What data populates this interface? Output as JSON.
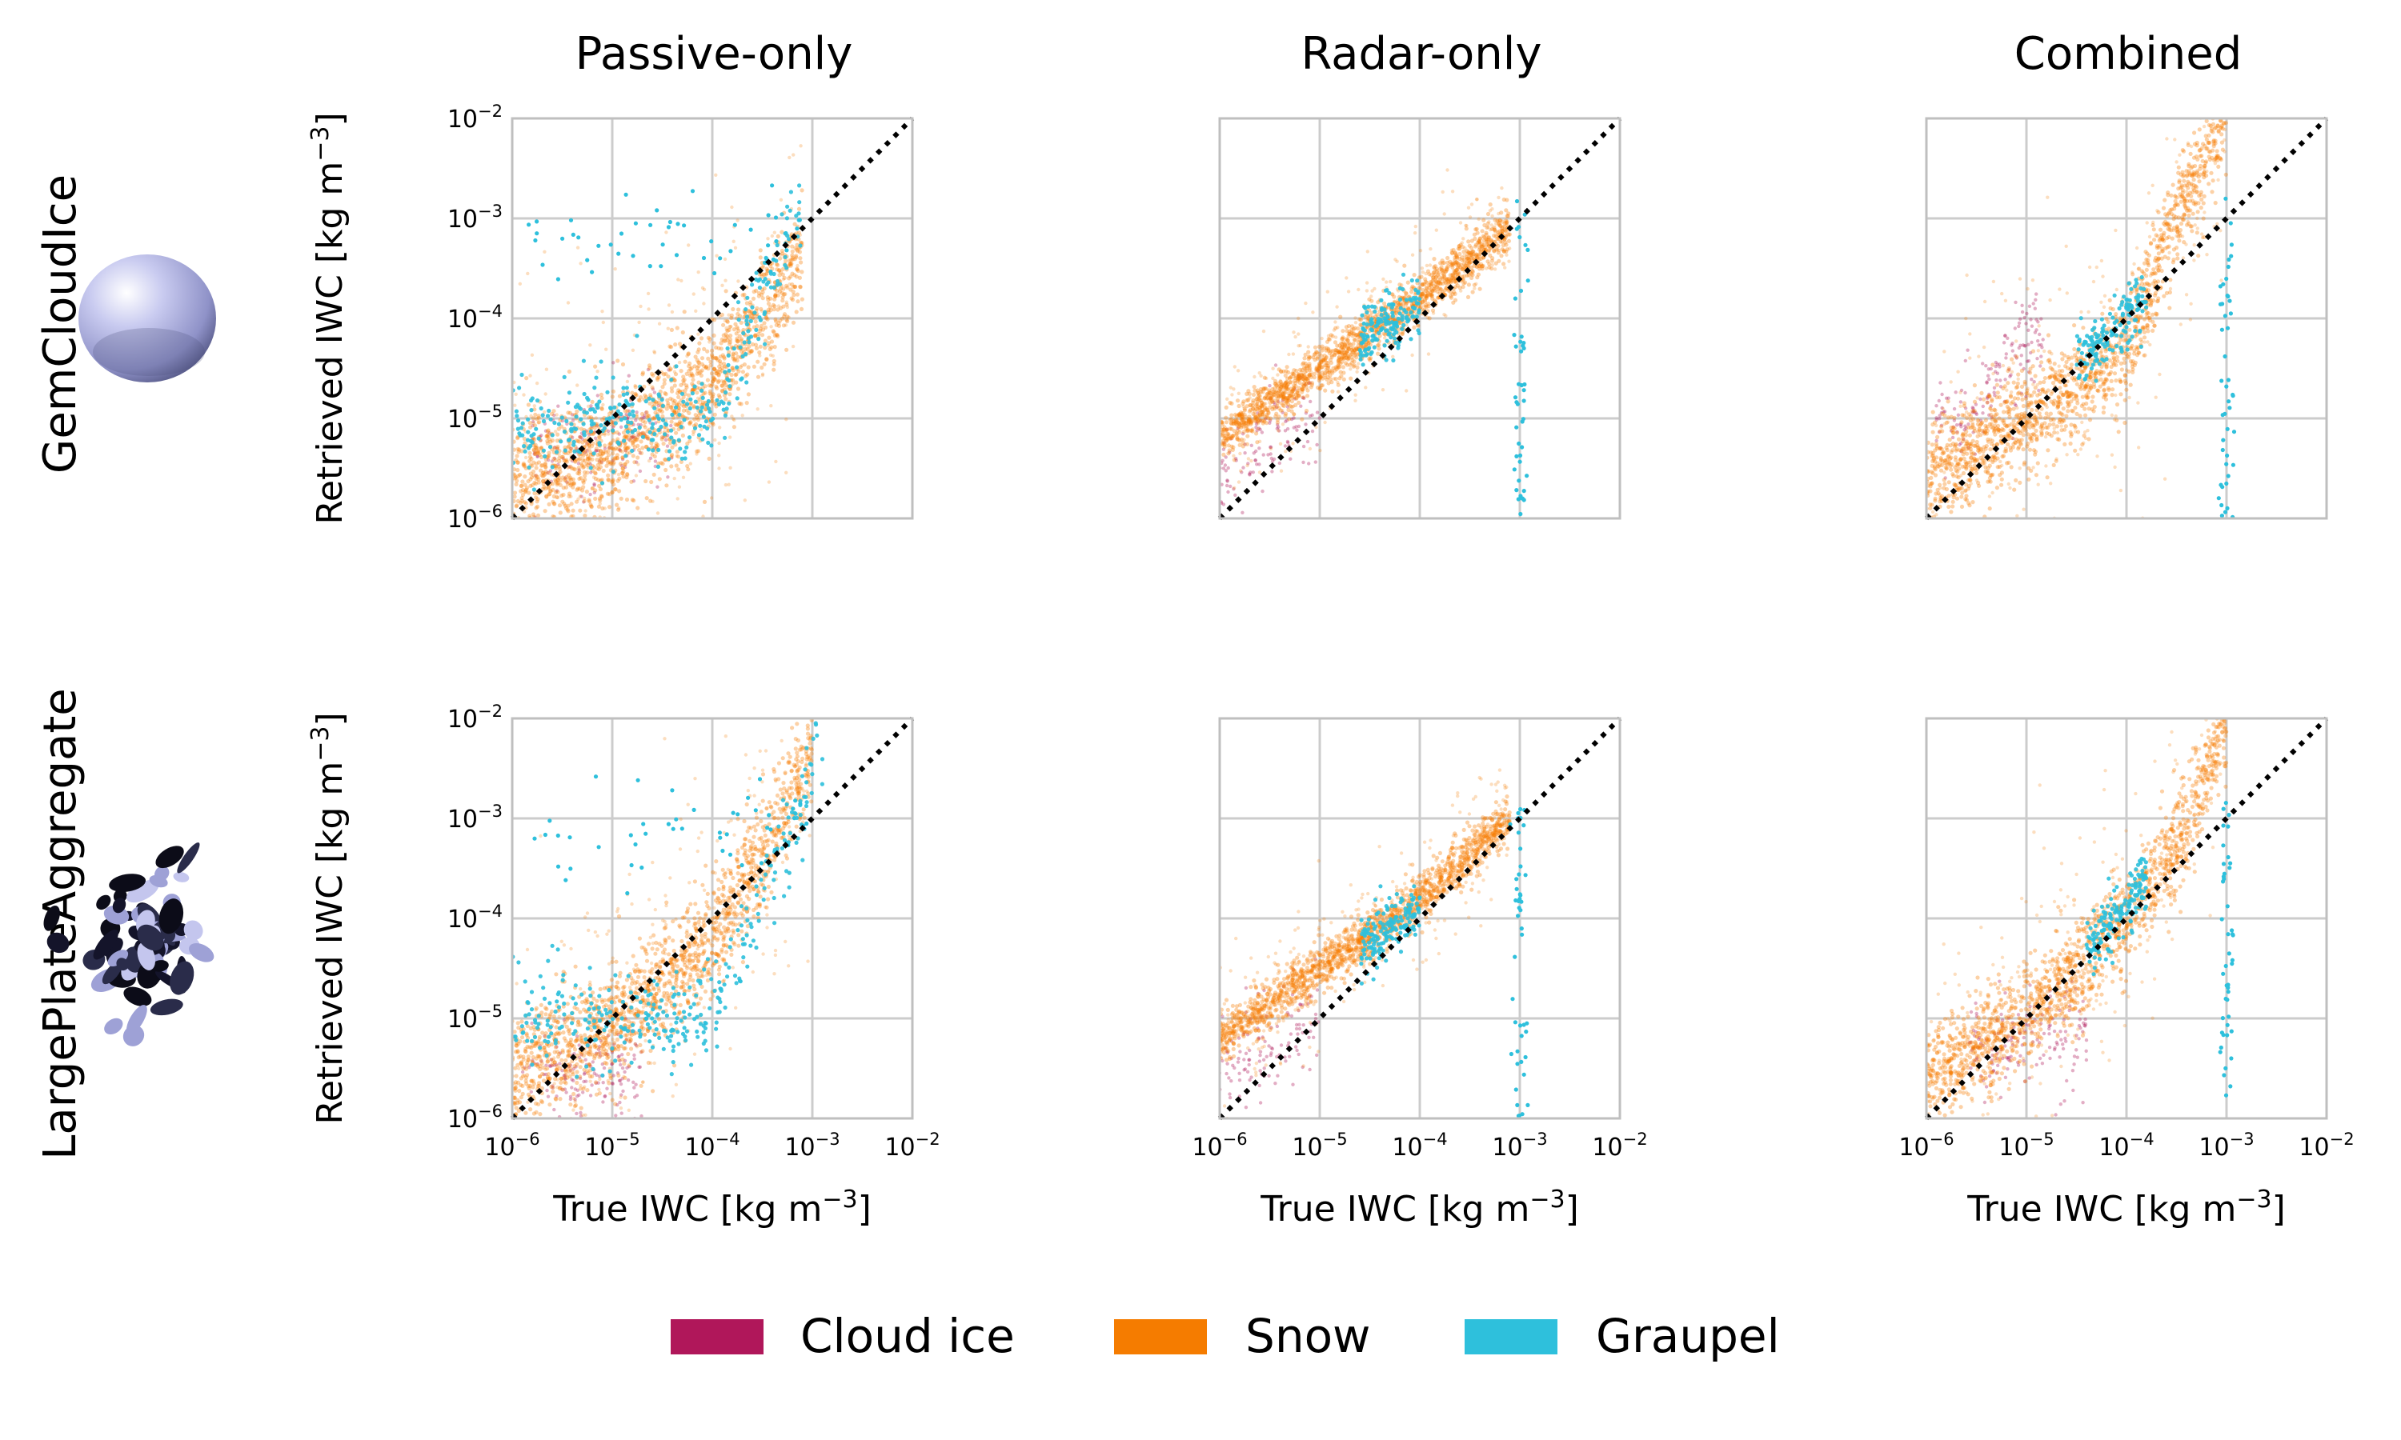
{
  "figure": {
    "columns": [
      "Passive-only",
      "Radar-only",
      "Combined"
    ],
    "rows": [
      "GemCloudIce",
      "LargePlateAggregate"
    ],
    "xlabel_text": "True IWC [kg m",
    "xlabel_exp": "−3",
    "xlabel_end": "]",
    "ylabel_text": "Retrieved IWC [kg  m",
    "ylabel_exp": "−3",
    "ylabel_end": "]",
    "colors": {
      "cloud_ice": "#b0175a",
      "snow": "#f57c00",
      "graupel": "#2ec0dc"
    },
    "legend": [
      {
        "name": "Cloud ice",
        "color": "#b0175a"
      },
      {
        "name": "Snow",
        "color": "#f57c00"
      },
      {
        "name": "Graupel",
        "color": "#2ec0dc"
      }
    ],
    "particle_icons": [
      "sphere-icon",
      "aggregate-icon"
    ]
  },
  "chart_data": {
    "type": "scatter",
    "xscale": "log",
    "yscale": "log",
    "xlim": [
      1e-06,
      0.01
    ],
    "ylim": [
      1e-06,
      0.01
    ],
    "grid": true,
    "legend_position": "bottom-center",
    "reference_line": "one-to-one dotted",
    "tick_base": "10",
    "tick_exponents": [
      "−6",
      "−5",
      "−4",
      "−3",
      "−2"
    ],
    "series": [
      "Cloud ice",
      "Snow",
      "Graupel"
    ],
    "panels": [
      {
        "row": "GemCloudIce",
        "column": "Passive-only",
        "snow_trend": [
          [
            -6,
            -5.6
          ],
          [
            -5,
            -5.3
          ],
          [
            -4.5,
            -5
          ],
          [
            -4,
            -4.6
          ],
          [
            -3.5,
            -4
          ],
          [
            -3.1,
            -3.3
          ]
        ],
        "graupel_trend": [
          [
            -6,
            -5.1
          ],
          [
            -5,
            -5
          ],
          [
            -4,
            -5
          ],
          [
            -3.1,
            -2.8
          ]
        ],
        "cloud_ice_trend": [
          [
            -5.5,
            -5.3
          ],
          [
            -4.6,
            -5.1
          ]
        ]
      },
      {
        "row": "GemCloudIce",
        "column": "Radar-only",
        "snow_trend": [
          [
            -6,
            -5.2
          ],
          [
            -5,
            -4.5
          ],
          [
            -4,
            -3.8
          ],
          [
            -3.1,
            -3.1
          ]
        ],
        "graupel_trend": [
          [
            -4.6,
            -4.2
          ],
          [
            -4,
            -3.9
          ]
        ],
        "cloud_ice_trend": [
          [
            -6,
            -5.6
          ],
          [
            -5.2,
            -5
          ]
        ]
      },
      {
        "row": "GemCloudIce",
        "column": "Combined",
        "snow_trend": [
          [
            -6,
            -5.6
          ],
          [
            -5,
            -5
          ],
          [
            -4,
            -4.3
          ],
          [
            -3.5,
            -3
          ],
          [
            -3,
            -2
          ]
        ],
        "graupel_trend": [
          [
            -4.5,
            -4.4
          ],
          [
            -3.8,
            -3.8
          ]
        ],
        "cloud_ice_trend": [
          [
            -5.6,
            -5
          ],
          [
            -5,
            -4.2
          ]
        ]
      },
      {
        "row": "LargePlateAggregate",
        "column": "Passive-only",
        "snow_trend": [
          [
            -6,
            -5.5
          ],
          [
            -5,
            -5.1
          ],
          [
            -4,
            -4.2
          ],
          [
            -3.5,
            -3.4
          ],
          [
            -3,
            -2.3
          ]
        ],
        "graupel_trend": [
          [
            -6,
            -5
          ],
          [
            -5,
            -5
          ],
          [
            -4,
            -5
          ],
          [
            -2.9,
            -2.3
          ]
        ],
        "cloud_ice_trend": [
          [
            -5.6,
            -5.6
          ],
          [
            -4.9,
            -5.5
          ]
        ]
      },
      {
        "row": "LargePlateAggregate",
        "column": "Radar-only",
        "snow_trend": [
          [
            -6,
            -5.2
          ],
          [
            -5,
            -4.5
          ],
          [
            -4,
            -3.8
          ],
          [
            -3.1,
            -3
          ]
        ],
        "graupel_trend": [
          [
            -4.6,
            -4.3
          ],
          [
            -4,
            -3.9
          ]
        ],
        "cloud_ice_trend": [
          [
            -6,
            -5.6
          ],
          [
            -5.2,
            -5.1
          ]
        ]
      },
      {
        "row": "LargePlateAggregate",
        "column": "Combined",
        "snow_trend": [
          [
            -6,
            -5.6
          ],
          [
            -5,
            -5
          ],
          [
            -4,
            -4
          ],
          [
            -3.5,
            -3.3
          ],
          [
            -3,
            -2
          ]
        ],
        "graupel_trend": [
          [
            -4.4,
            -4.3
          ],
          [
            -3.8,
            -3.6
          ]
        ],
        "cloud_ice_trend": [
          [
            -5.3,
            -5.3
          ],
          [
            -4.6,
            -5.2
          ]
        ]
      }
    ]
  }
}
